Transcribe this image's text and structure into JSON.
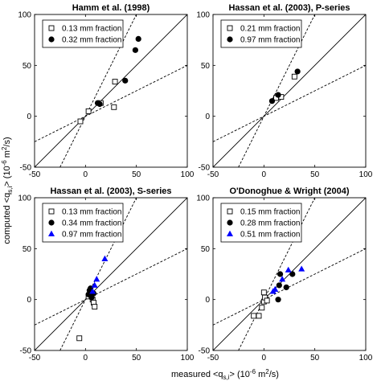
{
  "figure": {
    "ylabel": "computed <q",
    "ylabel_sub": "s,i",
    "ylabel_tail": "> (10",
    "ylabel_exp": "-6",
    "ylabel_unit": " m",
    "ylabel_unit_exp": "2",
    "ylabel_end": "/s)",
    "xlabel": "measured <q",
    "xlabel_sub": "s,i",
    "xlabel_tail": "> (10",
    "xlabel_exp": "-6",
    "xlabel_unit": " m",
    "xlabel_unit_exp": "2",
    "xlabel_end": "/s)"
  },
  "colors": {
    "blue": "#0000ff",
    "black": "#000000"
  },
  "chart_data": [
    {
      "type": "scatter",
      "title": "Hamm et al. (1998)",
      "xlim": [
        -50,
        100
      ],
      "ylim": [
        -50,
        100
      ],
      "xticks": [
        -50,
        0,
        50,
        100
      ],
      "yticks": [
        -50,
        0,
        50,
        100
      ],
      "legend_location": "top-left",
      "reference_lines": [
        "1:1 (solid)",
        "factor-2 bounds (dashed)"
      ],
      "series": [
        {
          "name": "0.13 mm fraction",
          "marker": "open-square",
          "points": [
            [
              -5,
              -5
            ],
            [
              3,
              5
            ],
            [
              15,
              13
            ],
            [
              28,
              9
            ],
            [
              29,
              34
            ]
          ]
        },
        {
          "name": "0.32 mm fraction",
          "marker": "filled-circle",
          "points": [
            [
              12,
              13
            ],
            [
              14,
              12
            ],
            [
              39,
              35
            ],
            [
              49,
              65
            ],
            [
              52,
              76
            ]
          ]
        }
      ]
    },
    {
      "type": "scatter",
      "title": "Hassan et al. (2003), P-series",
      "xlim": [
        -50,
        100
      ],
      "ylim": [
        -50,
        100
      ],
      "xticks": [
        -50,
        0,
        50,
        100
      ],
      "yticks": [
        -50,
        0,
        50,
        100
      ],
      "legend_location": "top-left",
      "reference_lines": [
        "1:1 (solid)",
        "factor-2 bounds (dashed)"
      ],
      "series": [
        {
          "name": "0.21 mm fraction",
          "marker": "open-square",
          "points": [
            [
              12,
              18
            ],
            [
              17,
              19
            ],
            [
              30,
              39
            ]
          ]
        },
        {
          "name": "0.97 mm fraction",
          "marker": "filled-circle",
          "points": [
            [
              8,
              15
            ],
            [
              14,
              21
            ],
            [
              33,
              44
            ]
          ]
        }
      ]
    },
    {
      "type": "scatter",
      "title": "Hassan et al. (2003), S-series",
      "xlim": [
        -50,
        100
      ],
      "ylim": [
        -50,
        100
      ],
      "xticks": [
        -50,
        0,
        50,
        100
      ],
      "yticks": [
        -50,
        0,
        50,
        100
      ],
      "legend_location": "top-left",
      "reference_lines": [
        "1:1 (solid)",
        "factor-2 bounds (dashed)"
      ],
      "series": [
        {
          "name": "0.13 mm fraction",
          "marker": "open-square",
          "points": [
            [
              -6,
              -38
            ],
            [
              3,
              3
            ],
            [
              7,
              0
            ],
            [
              8,
              -3
            ],
            [
              9,
              -7
            ]
          ]
        },
        {
          "name": "0.34 mm fraction",
          "marker": "filled-circle",
          "points": [
            [
              3,
              5
            ],
            [
              4,
              9
            ],
            [
              5,
              11
            ],
            [
              6,
              2
            ],
            [
              8,
              6
            ]
          ]
        },
        {
          "name": "0.97 mm fraction",
          "marker": "filled-triangle",
          "points": [
            [
              7,
              8
            ],
            [
              9,
              14
            ],
            [
              11,
              20
            ],
            [
              19,
              40
            ]
          ]
        }
      ]
    },
    {
      "type": "scatter",
      "title": "O'Donoghue & Wright (2004)",
      "xlim": [
        -50,
        100
      ],
      "ylim": [
        -50,
        100
      ],
      "xticks": [
        -50,
        0,
        50,
        100
      ],
      "yticks": [
        -50,
        0,
        50,
        100
      ],
      "legend_location": "top-left",
      "reference_lines": [
        "1:1 (solid)",
        "factor-2 bounds (dashed)"
      ],
      "series": [
        {
          "name": "0.15 mm fraction",
          "marker": "open-square",
          "points": [
            [
              -10,
              -16
            ],
            [
              -5,
              -16
            ],
            [
              -2,
              -8
            ],
            [
              0,
              -2
            ],
            [
              0,
              7
            ],
            [
              1,
              2
            ],
            [
              3,
              -1
            ]
          ]
        },
        {
          "name": "0.28 mm fraction",
          "marker": "filled-circle",
          "points": [
            [
              14,
              0
            ],
            [
              15,
              14
            ],
            [
              16,
              25
            ],
            [
              22,
              12
            ],
            [
              28,
              25
            ]
          ]
        },
        {
          "name": "0.51 mm fraction",
          "marker": "filled-triangle",
          "points": [
            [
              9,
              8
            ],
            [
              11,
              10
            ],
            [
              18,
              20
            ],
            [
              24,
              29
            ],
            [
              37,
              30
            ]
          ]
        }
      ]
    }
  ]
}
